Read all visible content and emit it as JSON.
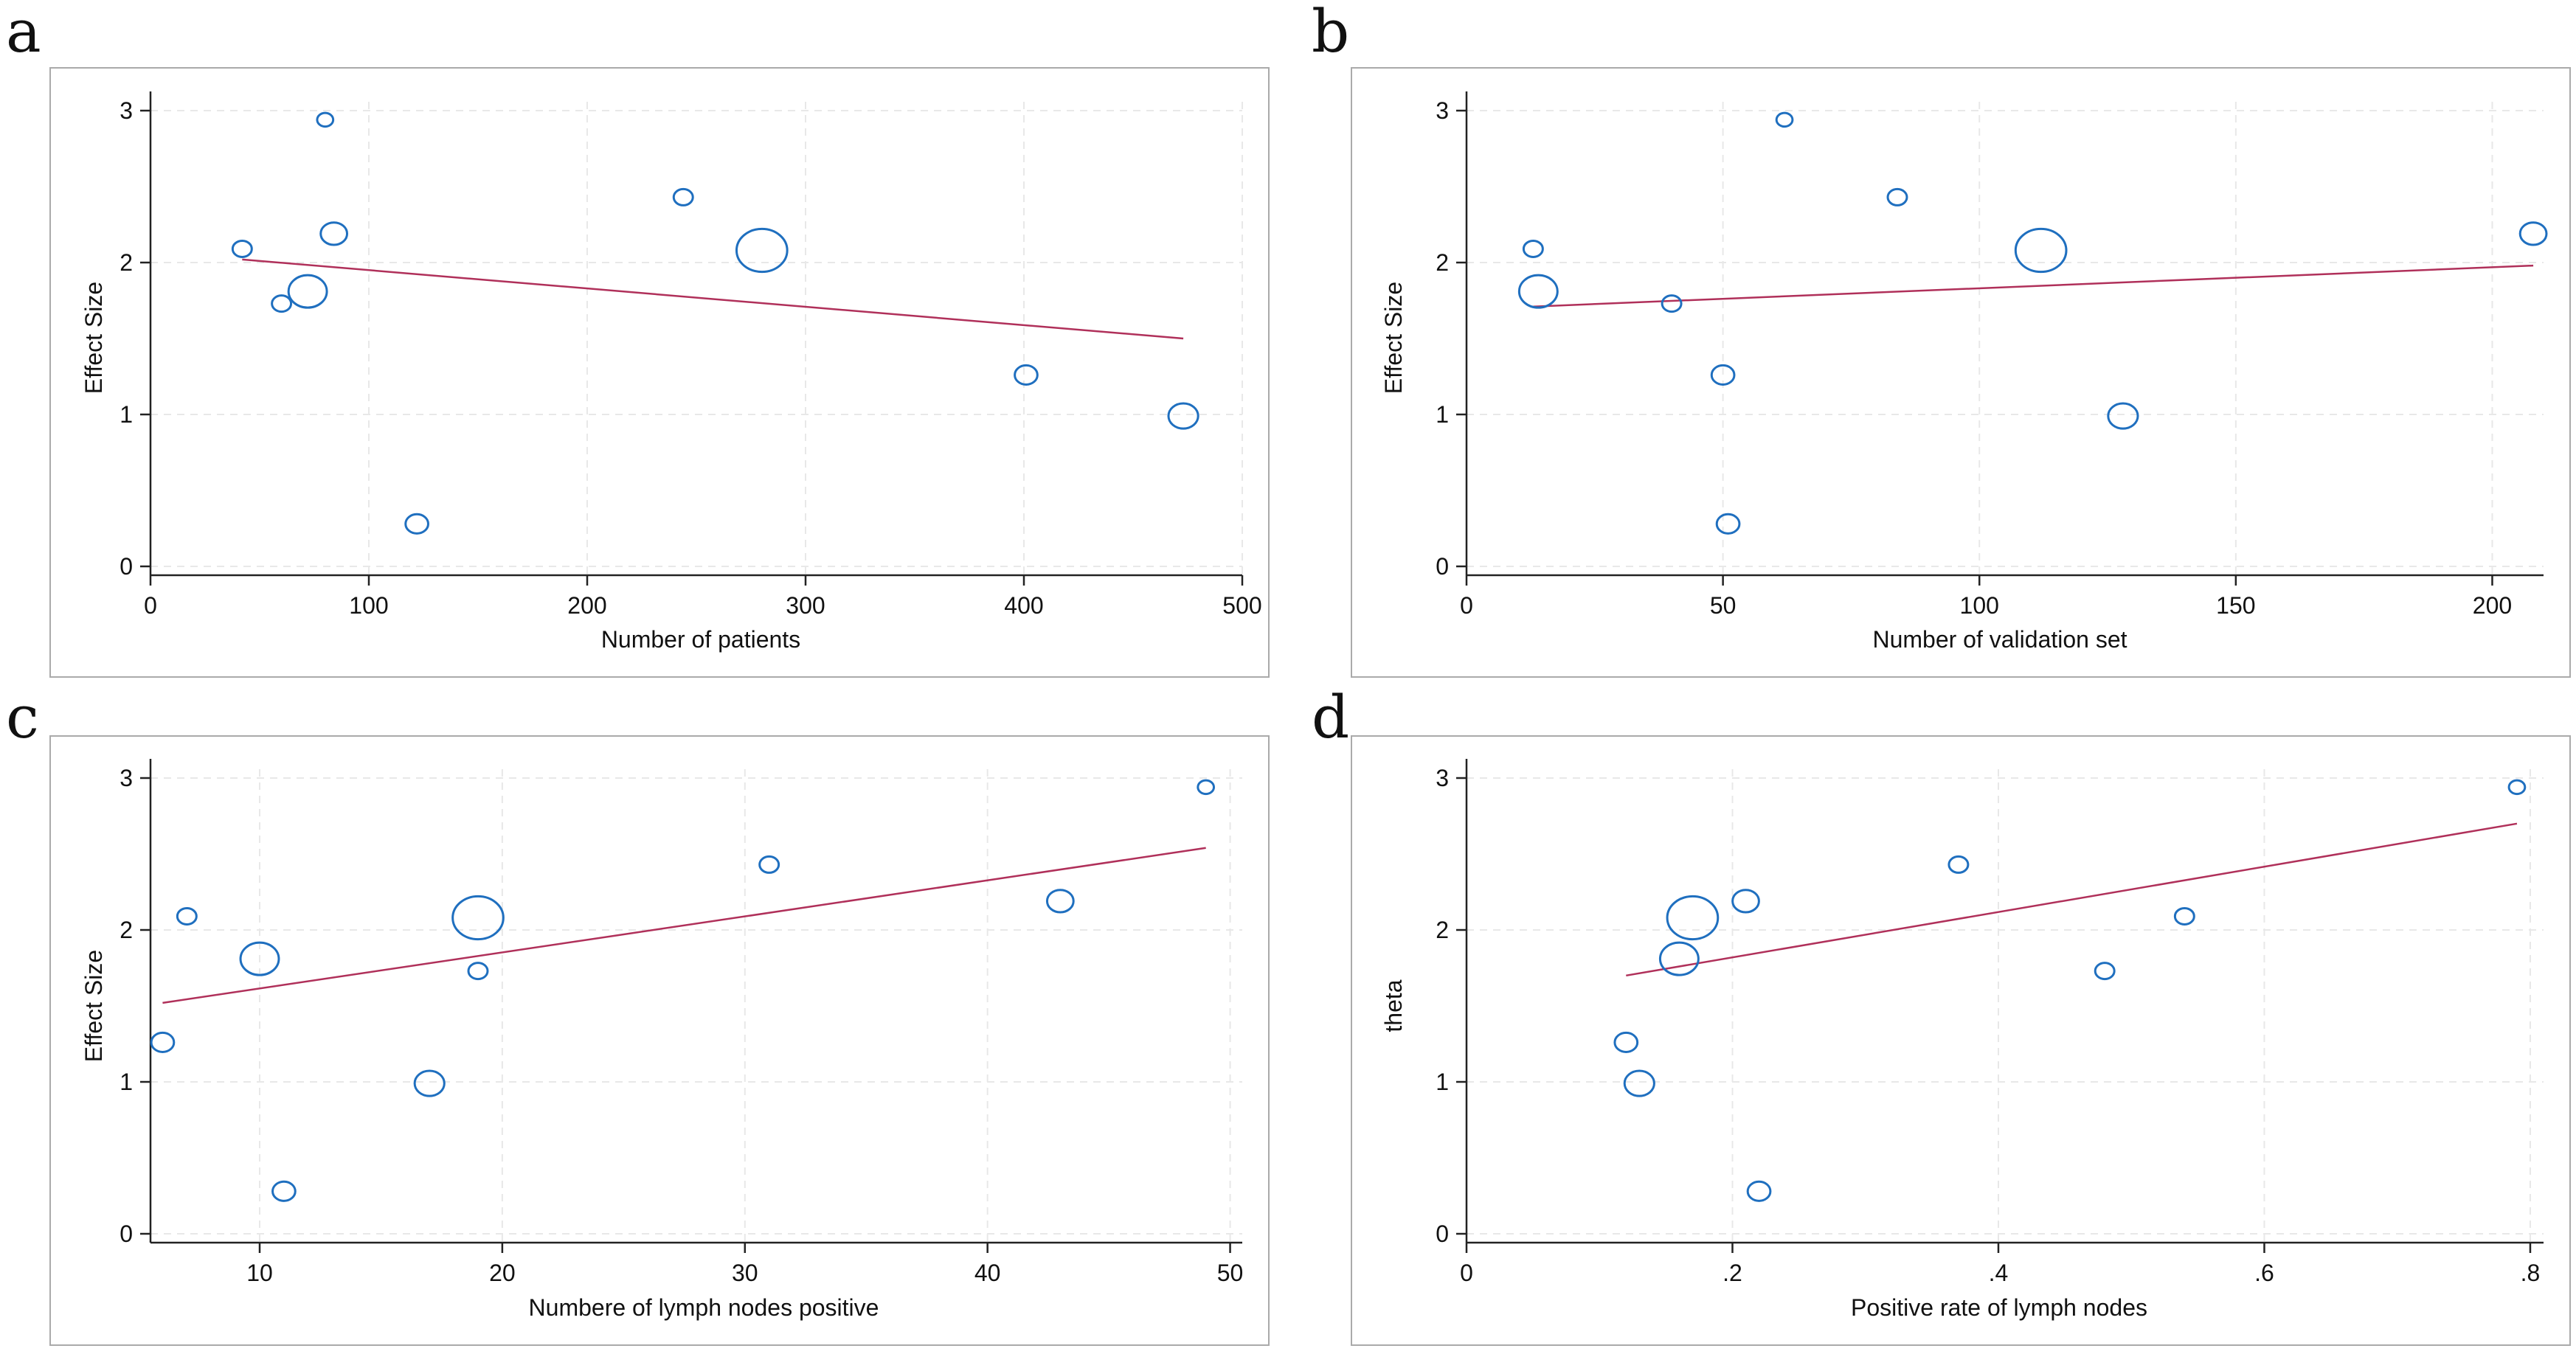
{
  "colors": {
    "bubble": "#1f6fbf",
    "fit_line": "#b0305a",
    "grid": "#e8e8e8",
    "frame": "#aaaaaa",
    "axis": "#222222"
  },
  "panels": [
    {
      "letter": "a",
      "xlabel": "Number of patients",
      "ylabel": "Effect Size"
    },
    {
      "letter": "b",
      "xlabel": "Number of validation set",
      "ylabel": "Effect Size"
    },
    {
      "letter": "c",
      "xlabel": "Numbere of lymph nodes positive",
      "ylabel": "Effect Size"
    },
    {
      "letter": "d",
      "xlabel": "Positive rate of lymph nodes",
      "ylabel": "theta"
    }
  ],
  "chart_data": [
    {
      "type": "scatter",
      "subtype": "bubble meta-regression",
      "xlabel": "Number of patients",
      "ylabel": "Effect Size",
      "xlim": [
        0,
        500
      ],
      "ylim": [
        0,
        3
      ],
      "xticks": [
        0,
        100,
        200,
        300,
        400,
        500
      ],
      "xtick_labels": [
        "0",
        "100",
        "200",
        "300",
        "400",
        "500"
      ],
      "yticks": [
        0,
        1,
        2,
        3
      ],
      "ytick_labels": [
        "0",
        "1",
        "2",
        "3"
      ],
      "points": [
        {
          "x": 42,
          "y": 2.09,
          "weight": 1.0
        },
        {
          "x": 60,
          "y": 1.73,
          "weight": 1.0
        },
        {
          "x": 72,
          "y": 1.81,
          "weight": 4.0
        },
        {
          "x": 80,
          "y": 2.94,
          "weight": 0.7
        },
        {
          "x": 84,
          "y": 2.19,
          "weight": 1.9
        },
        {
          "x": 122,
          "y": 0.28,
          "weight": 1.4
        },
        {
          "x": 244,
          "y": 2.43,
          "weight": 1.0
        },
        {
          "x": 280,
          "y": 2.08,
          "weight": 7.0
        },
        {
          "x": 401,
          "y": 1.26,
          "weight": 1.4
        },
        {
          "x": 473,
          "y": 0.99,
          "weight": 2.4
        }
      ],
      "fit": {
        "x": [
          42,
          473
        ],
        "y": [
          2.02,
          1.5
        ]
      }
    },
    {
      "type": "scatter",
      "subtype": "bubble meta-regression",
      "xlabel": "Number of validation set",
      "ylabel": "Effect Size",
      "xlim": [
        0,
        210
      ],
      "ylim": [
        0,
        3
      ],
      "xticks": [
        0,
        50,
        100,
        150,
        200
      ],
      "xtick_labels": [
        "0",
        "50",
        "100",
        "150",
        "200"
      ],
      "yticks": [
        0,
        1,
        2,
        3
      ],
      "ytick_labels": [
        "0",
        "1",
        "2",
        "3"
      ],
      "points": [
        {
          "x": 13,
          "y": 2.09,
          "weight": 1.0
        },
        {
          "x": 14,
          "y": 1.81,
          "weight": 4.0
        },
        {
          "x": 40,
          "y": 1.73,
          "weight": 1.0
        },
        {
          "x": 50,
          "y": 1.26,
          "weight": 1.4
        },
        {
          "x": 51,
          "y": 0.28,
          "weight": 1.4
        },
        {
          "x": 62,
          "y": 2.94,
          "weight": 0.7
        },
        {
          "x": 84,
          "y": 2.43,
          "weight": 1.0
        },
        {
          "x": 112,
          "y": 2.08,
          "weight": 7.0
        },
        {
          "x": 128,
          "y": 0.99,
          "weight": 2.4
        },
        {
          "x": 208,
          "y": 2.19,
          "weight": 1.9
        }
      ],
      "fit": {
        "x": [
          13,
          208
        ],
        "y": [
          1.71,
          1.98
        ]
      }
    },
    {
      "type": "scatter",
      "subtype": "bubble meta-regression",
      "xlabel": "Numbere of lymph nodes positive",
      "ylabel": "Effect Size",
      "xlim": [
        5.5,
        50.5
      ],
      "ylim": [
        0,
        3
      ],
      "xticks": [
        10,
        20,
        30,
        40,
        50
      ],
      "xtick_labels": [
        "10",
        "20",
        "30",
        "40",
        "50"
      ],
      "yticks": [
        0,
        1,
        2,
        3
      ],
      "ytick_labels": [
        "0",
        "1",
        "2",
        "3"
      ],
      "points": [
        {
          "x": 6,
          "y": 1.26,
          "weight": 1.4
        },
        {
          "x": 7,
          "y": 2.09,
          "weight": 1.0
        },
        {
          "x": 10,
          "y": 1.81,
          "weight": 4.0
        },
        {
          "x": 11,
          "y": 0.28,
          "weight": 1.4
        },
        {
          "x": 17,
          "y": 0.99,
          "weight": 2.4
        },
        {
          "x": 19,
          "y": 2.08,
          "weight": 7.0
        },
        {
          "x": 19,
          "y": 1.73,
          "weight": 1.0
        },
        {
          "x": 31,
          "y": 2.43,
          "weight": 1.0
        },
        {
          "x": 43,
          "y": 2.19,
          "weight": 1.9
        },
        {
          "x": 49,
          "y": 2.94,
          "weight": 0.7
        }
      ],
      "fit": {
        "x": [
          6,
          49
        ],
        "y": [
          1.52,
          2.54
        ]
      }
    },
    {
      "type": "scatter",
      "subtype": "bubble meta-regression",
      "xlabel": "Positive rate of lymph nodes",
      "ylabel": "theta",
      "xlim": [
        0,
        0.81
      ],
      "ylim": [
        0,
        3
      ],
      "xticks": [
        0,
        0.2,
        0.4,
        0.6,
        0.8
      ],
      "xtick_labels": [
        "0",
        ".2",
        ".4",
        ".6",
        ".8"
      ],
      "yticks": [
        0,
        1,
        2,
        3
      ],
      "ytick_labels": [
        "0",
        "1",
        "2",
        "3"
      ],
      "points": [
        {
          "x": 0.12,
          "y": 1.26,
          "weight": 1.4
        },
        {
          "x": 0.13,
          "y": 0.99,
          "weight": 2.4
        },
        {
          "x": 0.16,
          "y": 1.81,
          "weight": 4.0
        },
        {
          "x": 0.17,
          "y": 2.08,
          "weight": 7.0
        },
        {
          "x": 0.21,
          "y": 2.19,
          "weight": 1.9
        },
        {
          "x": 0.22,
          "y": 0.28,
          "weight": 1.4
        },
        {
          "x": 0.37,
          "y": 2.43,
          "weight": 1.0
        },
        {
          "x": 0.48,
          "y": 1.73,
          "weight": 1.0
        },
        {
          "x": 0.54,
          "y": 2.09,
          "weight": 1.0
        },
        {
          "x": 0.79,
          "y": 2.94,
          "weight": 0.7
        }
      ],
      "fit": {
        "x": [
          0.12,
          0.79
        ],
        "y": [
          1.7,
          2.7
        ]
      }
    }
  ]
}
